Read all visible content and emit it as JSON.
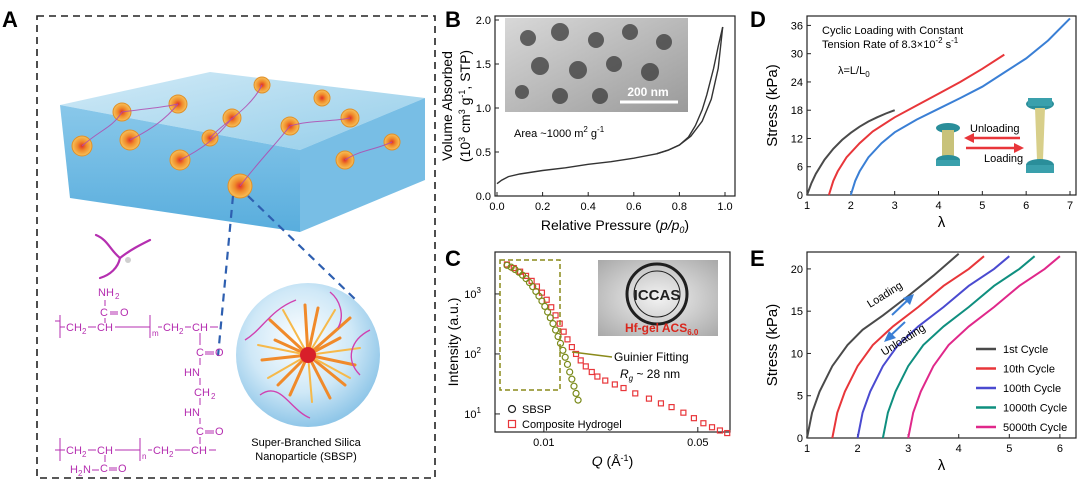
{
  "panels": {
    "A": {
      "letter": "A",
      "sbsp_caption_line1": "Super-Branched Silica",
      "sbsp_caption_line2": "Nanoparticle (SBSP)",
      "chem": {
        "nh2_top": "NH",
        "nh2_top_sub": "2",
        "c_top": "C",
        "o_top": "O",
        "backbone_top": "CH",
        "backbone_top_sub": "2",
        "ch_top": "CH",
        "m": "m",
        "ch2_right_top": "CH",
        "ch2_right_top_sub": "2",
        "ch_right_top": "CH",
        "c_o1": "C",
        "o1": "O",
        "hn1": "HN",
        "ch2_mid": "CH",
        "ch2_mid_sub": "2",
        "hn2": "HN",
        "c_o2": "C",
        "o2": "O",
        "backbone_bottom": "CH",
        "backbone_bottom_sub": "2",
        "ch_bottom": "CH",
        "n": "n",
        "ch2_right_bottom": "CH",
        "ch2_right_bottom_sub": "2",
        "ch_right_bottom": "CH",
        "c_bottom": "C",
        "o_bottom": "O",
        "h2n_bottom": "H",
        "h2n_bottom_sub": "2",
        "h2n_bottom_n": "N"
      }
    },
    "B": {
      "letter": "B",
      "inset_scale": "200 nm",
      "area_text": "Area ~1000 m",
      "area_sup": "2",
      "area_tail": " g",
      "area_sup2": "-1"
    },
    "C": {
      "letter": "C",
      "guinier_label": "Guinier Fitting",
      "rg_label": "R",
      "rg_sub": "g",
      "rg_tail": " ~ 28 nm",
      "logo_text": "ICCAS",
      "hf_label": "Hf-gel ACS",
      "hf_sub": "6.0"
    },
    "D": {
      "letter": "D",
      "annot_line1": "Cyclic Loading with Constant",
      "annot_line2": "Tension Rate of 8.3×10",
      "annot_sup": "-2",
      "annot_tail": " s",
      "annot_sup2": "-1",
      "lambda_def": "λ=L/L",
      "lambda_sub": "0",
      "unloading": "Unloading",
      "loading": "Loading"
    },
    "E": {
      "letter": "E",
      "loading": "Loading",
      "unloading": "Unloading"
    }
  },
  "colors": {
    "dark": "#4a4a4a",
    "red": "#e8363a",
    "blue": "#3a7fd5",
    "teal": "#0f8f7f",
    "magenta": "#e0288a",
    "violet": "#4a4ad0",
    "olive": "#7a8a1a",
    "purple_chem": "#b52fb0"
  },
  "chart_data": [
    {
      "id": "B",
      "type": "line",
      "title": "",
      "xlabel": "Relative Pressure (p/p0)",
      "xlabel_main": "Relative Pressure (",
      "xlabel_var": "p/p",
      "xlabel_sub": "0",
      "xlabel_close": ")",
      "ylabel_line1": "Volume Absorbed",
      "ylabel_line2": "(10",
      "ylabel_sup": "3",
      "ylabel_line2b": " cm",
      "ylabel_sup2": "3",
      "ylabel_line2c": " g",
      "ylabel_sup3": "-1",
      "ylabel_line2d": ", STP)",
      "xlim": [
        0,
        1.0
      ],
      "ylim": [
        0,
        2.0
      ],
      "xticks": [
        "0.0",
        "0.2",
        "0.4",
        "0.6",
        "0.8",
        "1.0"
      ],
      "yticks": [
        "0.0",
        "0.5",
        "1.0",
        "1.5",
        "2.0"
      ],
      "series": [
        {
          "name": "adsorption",
          "x": [
            0.0,
            0.02,
            0.05,
            0.1,
            0.2,
            0.3,
            0.4,
            0.5,
            0.6,
            0.7,
            0.75,
            0.8,
            0.85,
            0.9,
            0.94,
            0.97,
            0.99
          ],
          "y": [
            0.14,
            0.18,
            0.22,
            0.25,
            0.29,
            0.32,
            0.36,
            0.39,
            0.43,
            0.48,
            0.52,
            0.58,
            0.68,
            0.85,
            1.1,
            1.45,
            1.92
          ]
        },
        {
          "name": "desorption",
          "x": [
            0.99,
            0.97,
            0.95,
            0.92,
            0.9,
            0.87,
            0.84,
            0.8,
            0.75,
            0.7
          ],
          "y": [
            1.92,
            1.7,
            1.45,
            1.15,
            0.98,
            0.8,
            0.67,
            0.58,
            0.52,
            0.48
          ]
        }
      ]
    },
    {
      "id": "C",
      "type": "scatter",
      "xlabel_var": "Q",
      "xlabel_rest": " (Å",
      "xlabel_sup": "-1",
      "xlabel_close": ")",
      "ylabel": "Intensity (a.u.)",
      "xscale": "log",
      "yscale": "log",
      "xlim": [
        0.006,
        0.07
      ],
      "ylim": [
        5,
        5000
      ],
      "xticks": [
        {
          "v": 0.01,
          "label": "0.01"
        },
        {
          "v": 0.05,
          "label": "0.05"
        }
      ],
      "yticks": [
        {
          "v": 10,
          "label": "10",
          "sup": "1"
        },
        {
          "v": 100,
          "label": "10",
          "sup": "2"
        },
        {
          "v": 1000,
          "label": "10",
          "sup": "3"
        }
      ],
      "legend": [
        "SBSP",
        "Composite Hydrogel"
      ],
      "series": [
        {
          "name": "SBSP",
          "x": [
            0.0068,
            0.0071,
            0.0074,
            0.0077,
            0.008,
            0.0083,
            0.0086,
            0.0089,
            0.0092,
            0.0095,
            0.0098,
            0.0101,
            0.0104,
            0.0107,
            0.011,
            0.0113,
            0.0116,
            0.0119,
            0.0122,
            0.0125,
            0.0128,
            0.0131,
            0.0134,
            0.0137,
            0.014,
            0.0143
          ],
          "y": [
            3000,
            2800,
            2550,
            2300,
            2050,
            1800,
            1550,
            1320,
            1100,
            920,
            760,
            620,
            500,
            400,
            320,
            250,
            195,
            150,
            115,
            88,
            67,
            50,
            38,
            29,
            22,
            17
          ]
        },
        {
          "name": "Composite Hydrogel",
          "x": [
            0.0068,
            0.0073,
            0.0078,
            0.0083,
            0.0088,
            0.0093,
            0.0098,
            0.0103,
            0.0108,
            0.0113,
            0.0118,
            0.0123,
            0.0128,
            0.0134,
            0.014,
            0.0147,
            0.0155,
            0.0165,
            0.0175,
            0.019,
            0.021,
            0.023,
            0.026,
            0.03,
            0.034,
            0.038,
            0.043,
            0.048,
            0.053,
            0.058,
            0.063,
            0.068
          ],
          "y": [
            3100,
            2700,
            2350,
            2000,
            1650,
            1330,
            1050,
            800,
            600,
            440,
            320,
            235,
            175,
            130,
            100,
            78,
            62,
            50,
            42,
            36,
            31,
            27,
            22,
            18,
            15,
            13,
            10.5,
            8.5,
            7,
            6,
            5.3,
            4.8
          ]
        }
      ]
    },
    {
      "id": "D",
      "type": "line",
      "xlabel": "λ",
      "ylabel": "Stress (kPa)",
      "xlim": [
        1,
        7
      ],
      "ylim": [
        0,
        38
      ],
      "xticks": [
        "1",
        "2",
        "3",
        "4",
        "5",
        "6",
        "7"
      ],
      "yticks": [
        "0",
        "6",
        "12",
        "18",
        "24",
        "30",
        "36"
      ],
      "series": [
        {
          "name": "curve1",
          "color": "dark",
          "x": [
            1.0,
            1.1,
            1.2,
            1.4,
            1.6,
            1.8,
            2.0,
            2.2,
            2.4,
            2.6,
            2.8,
            3.0
          ],
          "y": [
            0,
            2.5,
            4.5,
            7.5,
            9.8,
            11.7,
            13.2,
            14.5,
            15.6,
            16.5,
            17.3,
            18
          ]
        },
        {
          "name": "curve2",
          "color": "red",
          "x": [
            1.5,
            1.6,
            1.7,
            1.9,
            2.2,
            2.5,
            3.0,
            3.5,
            4.0,
            4.5,
            5.0,
            5.5
          ],
          "y": [
            0,
            3,
            5,
            8,
            11,
            13.5,
            16.5,
            19,
            21.5,
            24,
            26.8,
            29.8
          ]
        },
        {
          "name": "curve3",
          "color": "blue",
          "x": [
            2.0,
            2.1,
            2.2,
            2.4,
            2.7,
            3.0,
            3.5,
            4.0,
            4.5,
            5.0,
            5.5,
            6.0,
            6.5,
            7.0
          ],
          "y": [
            0,
            3,
            5,
            8,
            11,
            13.3,
            16,
            18.3,
            20.6,
            23,
            26,
            29,
            32.8,
            37.5
          ]
        }
      ]
    },
    {
      "id": "E",
      "type": "line",
      "xlabel": "λ",
      "ylabel": "Stress (kPa)",
      "xlim": [
        1,
        6.2
      ],
      "ylim": [
        0,
        22
      ],
      "xticks": [
        "1",
        "2",
        "3",
        "4",
        "5",
        "6"
      ],
      "yticks": [
        "0",
        "5",
        "10",
        "15",
        "20"
      ],
      "legend": [
        "1st Cycle",
        "10th Cycle",
        "100th Cycle",
        "1000th Cycle",
        "5000th Cycle"
      ],
      "series": [
        {
          "name": "1st Cycle",
          "color": "dark",
          "x": [
            1.0,
            1.1,
            1.25,
            1.5,
            1.8,
            2.1,
            2.5,
            3.0,
            3.5,
            4.0
          ],
          "y": [
            0,
            3,
            5.5,
            8.5,
            11,
            12.8,
            14.5,
            16.8,
            19.2,
            21.8
          ]
        },
        {
          "name": "10th Cycle",
          "color": "red",
          "x": [
            1.5,
            1.6,
            1.75,
            2.0,
            2.3,
            2.7,
            3.2,
            3.7,
            4.2,
            4.5
          ],
          "y": [
            0,
            3,
            5.5,
            8.5,
            11,
            13.2,
            15.5,
            18,
            20,
            21.5
          ]
        },
        {
          "name": "100th Cycle",
          "color": "violet",
          "x": [
            2.0,
            2.1,
            2.25,
            2.5,
            2.8,
            3.2,
            3.7,
            4.2,
            4.7,
            5.0
          ],
          "y": [
            0,
            3,
            5.5,
            8.5,
            11,
            13.2,
            15.5,
            18,
            20,
            21.5
          ]
        },
        {
          "name": "1000th Cycle",
          "color": "teal",
          "x": [
            2.5,
            2.6,
            2.75,
            3.0,
            3.3,
            3.7,
            4.2,
            4.7,
            5.2,
            5.5
          ],
          "y": [
            0,
            3,
            5.5,
            8.5,
            11,
            13.2,
            15.5,
            18,
            20,
            21.5
          ]
        },
        {
          "name": "5000th Cycle",
          "color": "magenta",
          "x": [
            3.0,
            3.1,
            3.25,
            3.5,
            3.8,
            4.2,
            4.7,
            5.2,
            5.7,
            6.0
          ],
          "y": [
            0,
            3,
            5.5,
            8.5,
            11,
            13.2,
            15.5,
            18,
            20,
            21.5
          ]
        }
      ]
    }
  ]
}
